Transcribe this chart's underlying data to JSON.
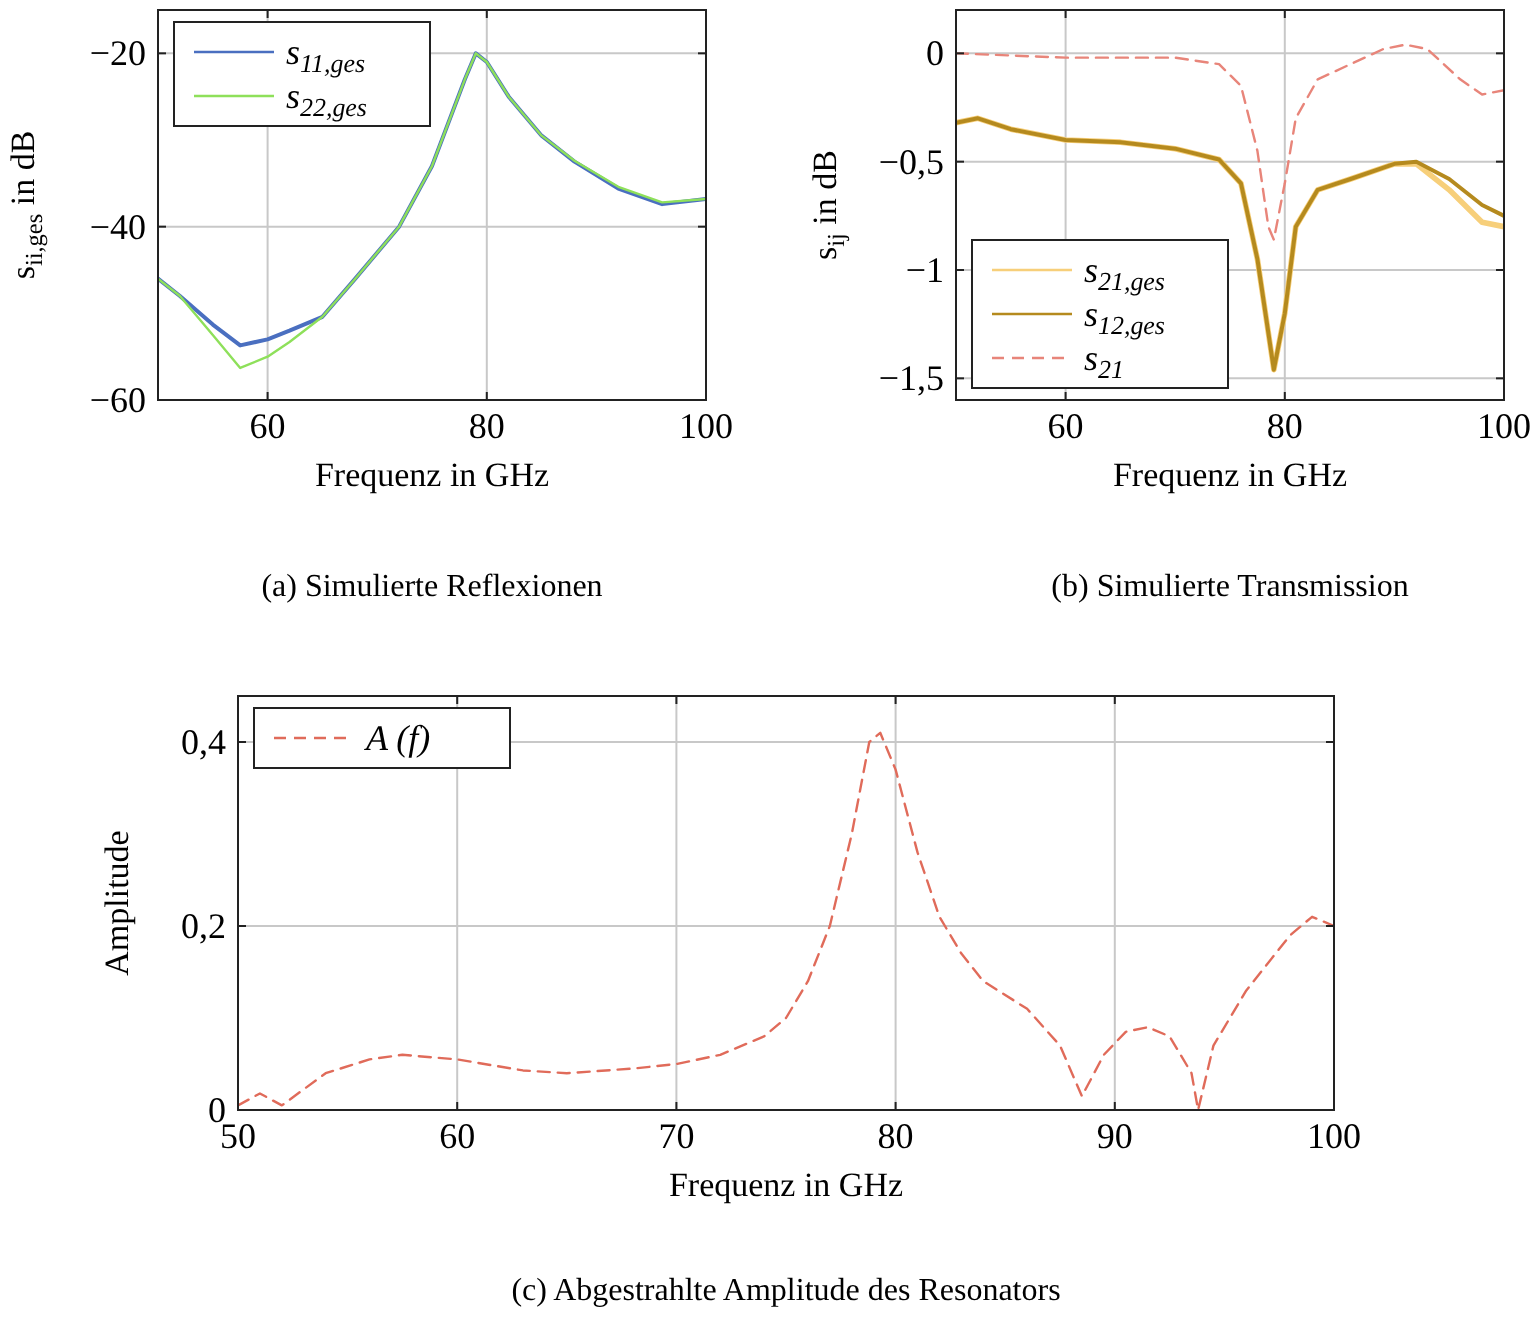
{
  "chart_data": [
    {
      "type": "line",
      "xlabel": "Frequenz in GHz",
      "ylabel": "s$_{ii,ges}$ in dB",
      "annotations": [
        "(a) Simulierte Reflexionen"
      ],
      "xlim": [
        50,
        100
      ],
      "ylim": [
        -60,
        -15
      ],
      "xticks": [
        60,
        80,
        100
      ],
      "yticks": [
        {
          "value": -60,
          "label": "−60"
        },
        {
          "value": -40,
          "label": "−40"
        },
        {
          "value": -20,
          "label": "−20"
        }
      ],
      "grid": true,
      "legend": "top left",
      "line_style": "solid",
      "series": [
        {
          "name": "s$_{11,ges}$",
          "color": "#4a6fc0",
          "x": [
            50,
            52,
            55,
            57.5,
            60,
            62,
            65,
            68,
            72,
            75,
            78,
            79,
            80,
            82,
            85,
            88,
            92,
            96,
            100
          ],
          "values": [
            -46,
            -48,
            -51.3,
            -53.7,
            -53,
            -52,
            -50.4,
            -46,
            -40,
            -33,
            -23,
            -20,
            -21,
            -25,
            -29.5,
            -32.5,
            -35.6,
            -37.4,
            -36.8
          ]
        },
        {
          "name": "s$_{22,ges}$",
          "color": "#8ee05a",
          "x": [
            50,
            52,
            55,
            57.5,
            60,
            62,
            65,
            68,
            72,
            75,
            78,
            79,
            80,
            82,
            85,
            88,
            92,
            96,
            100
          ],
          "values": [
            -46,
            -48,
            -52.5,
            -56.3,
            -55,
            -53.3,
            -50.4,
            -46,
            -40,
            -33,
            -23,
            -20,
            -21,
            -25,
            -29.5,
            -32.4,
            -35.4,
            -37.2,
            -36.8
          ]
        }
      ]
    },
    {
      "type": "line",
      "xlabel": "Frequenz in GHz",
      "ylabel": "s$_{ij}$ in dB",
      "annotations": [
        "(b) Simulierte Transmission"
      ],
      "xlim": [
        50,
        100
      ],
      "ylim": [
        -1.6,
        0.2
      ],
      "xticks": [
        60,
        80,
        100
      ],
      "yticks": [
        {
          "value": -1.5,
          "label": "−1,5"
        },
        {
          "value": -1,
          "label": "−1"
        },
        {
          "value": -0.5,
          "label": "−0,5"
        },
        0
      ],
      "grid": true,
      "legend": "bottom left",
      "series": [
        {
          "name": "s$_{21,ges}$",
          "color": "#f7cf7a",
          "line_style": "solid",
          "x": [
            50,
            52,
            55,
            60,
            65,
            70,
            74,
            76,
            77.5,
            79,
            80,
            81,
            83,
            86,
            90,
            92,
            95,
            98,
            100
          ],
          "values": [
            -0.32,
            -0.3,
            -0.35,
            -0.4,
            -0.41,
            -0.44,
            -0.49,
            -0.6,
            -0.95,
            -1.46,
            -1.2,
            -0.8,
            -0.63,
            -0.58,
            -0.51,
            -0.51,
            -0.63,
            -0.78,
            -0.8
          ]
        },
        {
          "name": "s$_{12,ges}$",
          "color": "#b58a1e",
          "line_style": "solid",
          "x": [
            50,
            52,
            55,
            60,
            65,
            70,
            74,
            76,
            77.5,
            79,
            80,
            81,
            83,
            86,
            90,
            92,
            95,
            98,
            100
          ],
          "values": [
            -0.32,
            -0.3,
            -0.35,
            -0.4,
            -0.41,
            -0.44,
            -0.49,
            -0.6,
            -0.95,
            -1.46,
            -1.2,
            -0.8,
            -0.63,
            -0.58,
            -0.51,
            -0.5,
            -0.58,
            -0.7,
            -0.75
          ]
        },
        {
          "name": "s$_{21}$",
          "color": "#e8857a",
          "line_style": "dashed",
          "x": [
            50,
            60,
            70,
            74,
            76,
            77.5,
            78.5,
            79,
            80,
            81,
            83,
            86,
            89,
            91,
            93,
            96,
            98,
            100
          ],
          "values": [
            0,
            -0.02,
            -0.02,
            -0.05,
            -0.15,
            -0.45,
            -0.8,
            -0.86,
            -0.6,
            -0.3,
            -0.12,
            -0.05,
            0.02,
            0.04,
            0.02,
            -0.12,
            -0.19,
            -0.17
          ]
        }
      ]
    },
    {
      "type": "line",
      "xlabel": "Frequenz in GHz",
      "ylabel": "Amplitude",
      "annotations": [
        "(c) Abgestrahlte Amplitude des Resonators"
      ],
      "xlim": [
        50,
        100
      ],
      "ylim": [
        0,
        0.45
      ],
      "xticks": [
        50,
        60,
        70,
        80,
        90,
        100
      ],
      "yticks": [
        0,
        {
          "value": 0.2,
          "label": "0,2"
        },
        {
          "value": 0.4,
          "label": "0,4"
        }
      ],
      "grid": true,
      "legend": "top left",
      "series": [
        {
          "name": "A (f)",
          "color": "#e06b5a",
          "line_style": "dashed",
          "x": [
            50,
            51,
            52,
            54,
            56,
            57.5,
            60,
            63,
            65,
            68,
            70,
            72,
            74,
            75,
            76,
            77,
            78,
            78.8,
            79.3,
            80,
            81,
            82,
            83,
            84,
            86,
            87.5,
            88.5,
            89.5,
            90.5,
            91.5,
            92.5,
            93.5,
            93.8,
            94.5,
            96,
            98,
            99,
            100
          ],
          "values": [
            0.005,
            0.018,
            0.005,
            0.04,
            0.055,
            0.06,
            0.055,
            0.043,
            0.04,
            0.045,
            0.05,
            0.06,
            0.08,
            0.1,
            0.14,
            0.2,
            0.3,
            0.4,
            0.41,
            0.37,
            0.28,
            0.21,
            0.17,
            0.14,
            0.11,
            0.07,
            0.015,
            0.06,
            0.085,
            0.09,
            0.08,
            0.04,
            0,
            0.07,
            0.13,
            0.19,
            0.21,
            0.2
          ]
        }
      ]
    }
  ]
}
